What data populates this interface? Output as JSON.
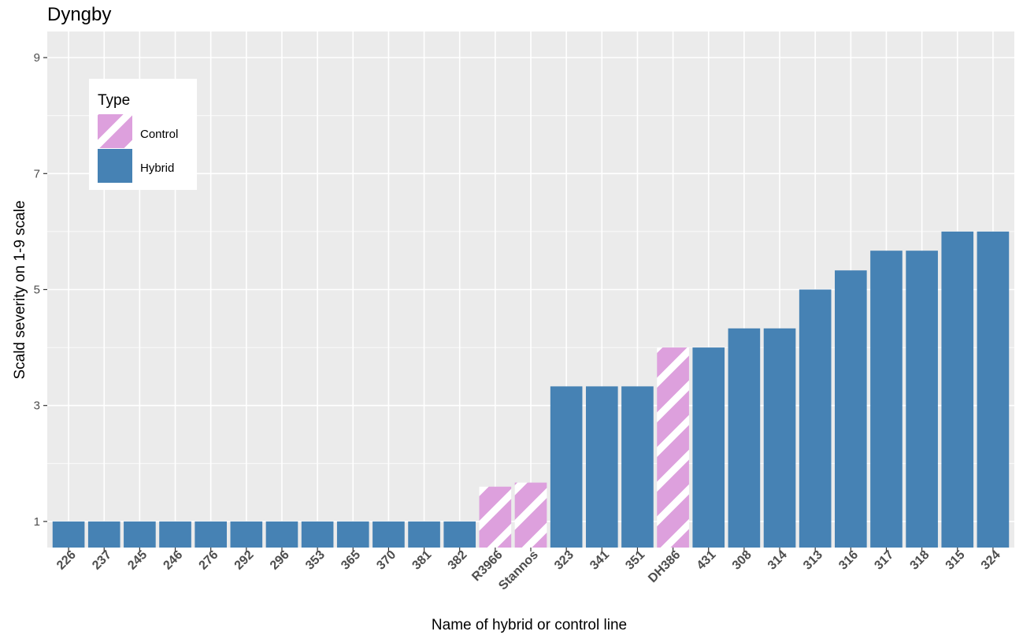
{
  "chart_data": {
    "type": "bar",
    "title": "Dyngby",
    "xlabel": "Name of hybrid or control line",
    "ylabel": "Scald severity on 1-9 scale",
    "ylim": [
      0.55,
      9.45
    ],
    "yticks": [
      1,
      3,
      5,
      7,
      9
    ],
    "grid": true,
    "legend": {
      "title": "Type",
      "placement": "top-left inside",
      "entries": [
        {
          "label": "Control",
          "color": "#dda0dd",
          "pattern": "diagonal-stripes"
        },
        {
          "label": "Hybrid",
          "color": "#4682b4",
          "pattern": "solid"
        }
      ]
    },
    "categories": [
      "226",
      "237",
      "245",
      "246",
      "276",
      "292",
      "296",
      "353",
      "365",
      "370",
      "381",
      "382",
      "R3966",
      "Stannos",
      "323",
      "341",
      "351",
      "DH386",
      "431",
      "308",
      "314",
      "313",
      "316",
      "317",
      "318",
      "315",
      "324"
    ],
    "values": [
      1,
      1,
      1,
      1,
      1,
      1,
      1,
      1,
      1,
      1,
      1,
      1,
      1.6,
      1.67,
      3.33,
      3.33,
      3.33,
      4.0,
      4.0,
      4.33,
      4.33,
      5.0,
      5.33,
      5.67,
      5.67,
      6.0,
      6.0
    ],
    "types": [
      "Hybrid",
      "Hybrid",
      "Hybrid",
      "Hybrid",
      "Hybrid",
      "Hybrid",
      "Hybrid",
      "Hybrid",
      "Hybrid",
      "Hybrid",
      "Hybrid",
      "Hybrid",
      "Control",
      "Control",
      "Hybrid",
      "Hybrid",
      "Hybrid",
      "Control",
      "Hybrid",
      "Hybrid",
      "Hybrid",
      "Hybrid",
      "Hybrid",
      "Hybrid",
      "Hybrid",
      "Hybrid",
      "Hybrid"
    ],
    "colors": {
      "Hybrid": "#4682b4",
      "Control": "#dda0dd",
      "panel": "#ebebeb",
      "grid": "#ffffff"
    }
  }
}
